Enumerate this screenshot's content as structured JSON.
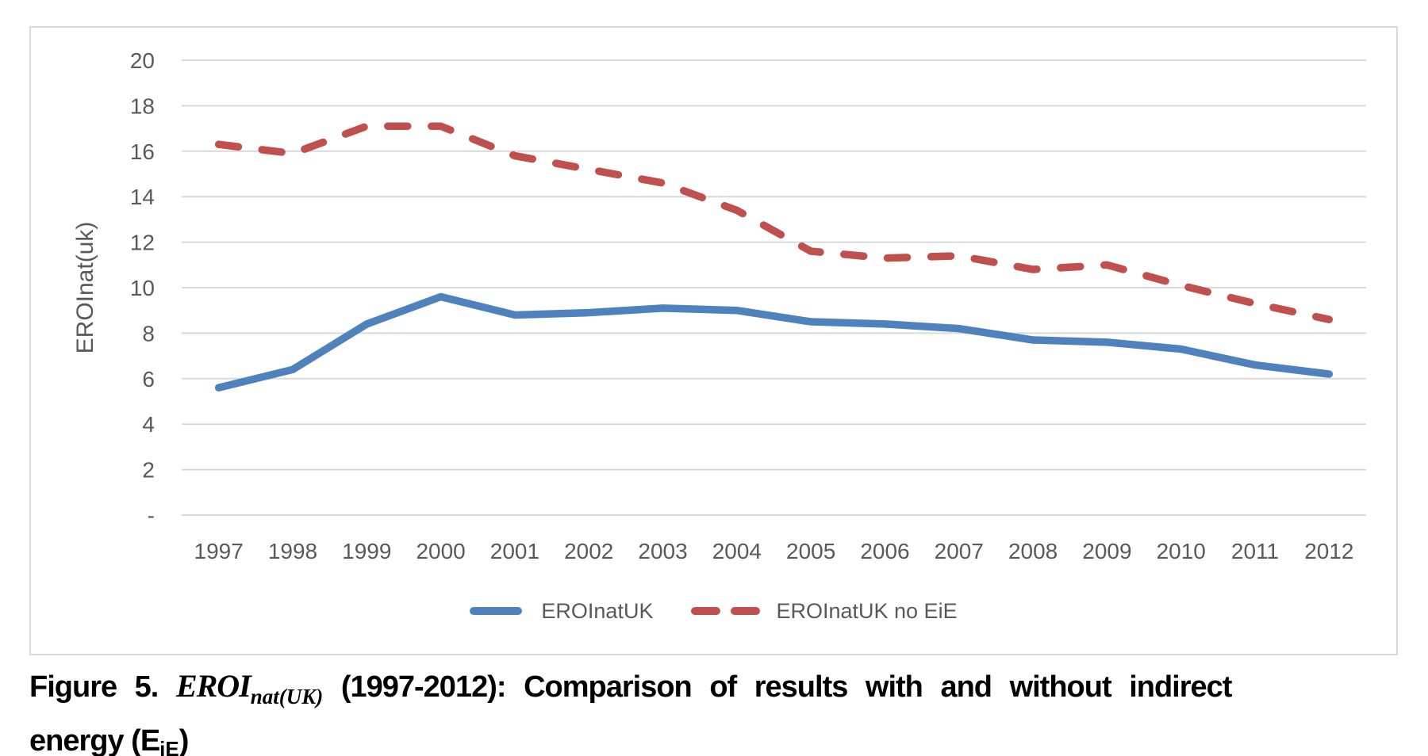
{
  "colors": {
    "series_blue": "#4F81BD",
    "series_red": "#C0504D",
    "gridline": "#D9D9D9",
    "axis_text": "#595959",
    "card_border": "#D9D9D9",
    "caption_text": "#000000"
  },
  "legend": {
    "items": [
      {
        "label": "EROInatUK",
        "style": "solid",
        "color": "#4F81BD"
      },
      {
        "label": "EROInatUK no EiE",
        "style": "dashed",
        "color": "#C0504D"
      }
    ]
  },
  "caption": {
    "figure_label": "Figure 5.",
    "math_term": "EROI",
    "math_sub": "nat(UK)",
    "line1_rest": "(1997-2012): Comparison of results with and without indirect",
    "line2_pre": "energy (E",
    "line2_sub": "iE",
    "line2_post": ")"
  },
  "chart_data": {
    "type": "line",
    "title": "",
    "xlabel": "",
    "ylabel": "EROInat(uk)",
    "ylim": [
      0,
      20
    ],
    "ytick_step": 2,
    "ytick_labels": [
      "-",
      "2",
      "4",
      "6",
      "8",
      "10",
      "12",
      "14",
      "16",
      "18",
      "20"
    ],
    "grid": "horizontal-only",
    "legend_position": "bottom",
    "categories": [
      "1997",
      "1998",
      "1999",
      "2000",
      "2001",
      "2002",
      "2003",
      "2004",
      "2005",
      "2006",
      "2007",
      "2008",
      "2009",
      "2010",
      "2011",
      "2012"
    ],
    "series": [
      {
        "name": "EROInatUK",
        "color": "#4F81BD",
        "style": "solid",
        "values": [
          5.6,
          6.4,
          8.4,
          9.6,
          8.8,
          8.9,
          9.1,
          9.0,
          8.5,
          8.4,
          8.2,
          7.7,
          7.6,
          7.3,
          6.6,
          6.2
        ]
      },
      {
        "name": "EROInatUK no EiE",
        "color": "#C0504D",
        "style": "dashed",
        "values": [
          16.3,
          15.9,
          17.1,
          17.1,
          15.8,
          15.2,
          14.6,
          13.4,
          11.6,
          11.3,
          11.4,
          10.8,
          11.0,
          10.1,
          9.3,
          8.6
        ]
      }
    ]
  }
}
